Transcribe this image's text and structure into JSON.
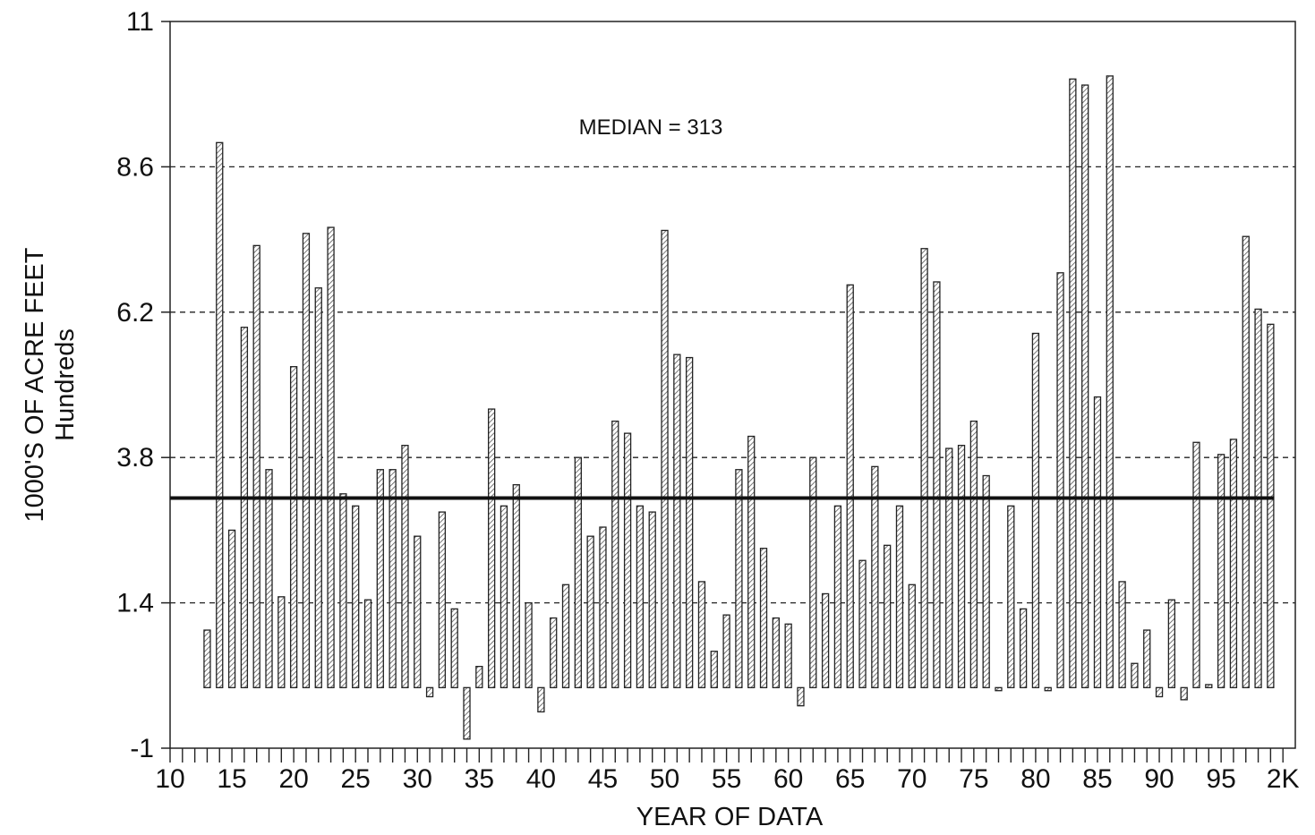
{
  "chart_data": {
    "type": "bar",
    "ylabel_line1": "1000'S OF ACRE FEET",
    "ylabel_line2": "Hundreds",
    "xlabel": "YEAR OF DATA",
    "annotation": "MEDIAN = 313",
    "median": 3.13,
    "baseline": 0,
    "ylim": [
      -1,
      11
    ],
    "yticks": [
      -1,
      1.4,
      3.8,
      6.2,
      8.6,
      11
    ],
    "ytick_labels": [
      "-1",
      "1.4",
      "3.8",
      "6.2",
      "8.6",
      "11"
    ],
    "xlim": [
      1910,
      2001
    ],
    "xtick_labels": [
      "10",
      "15",
      "20",
      "25",
      "30",
      "35",
      "40",
      "45",
      "50",
      "55",
      "60",
      "65",
      "70",
      "75",
      "80",
      "85",
      "90",
      "95",
      "2K"
    ],
    "gridlines": "horizontal dashed",
    "years": [
      1913,
      1914,
      1915,
      1916,
      1917,
      1918,
      1919,
      1920,
      1921,
      1922,
      1923,
      1924,
      1925,
      1926,
      1927,
      1928,
      1929,
      1930,
      1931,
      1932,
      1933,
      1934,
      1935,
      1936,
      1937,
      1938,
      1939,
      1940,
      1941,
      1942,
      1943,
      1944,
      1945,
      1946,
      1947,
      1948,
      1949,
      1950,
      1951,
      1952,
      1953,
      1954,
      1955,
      1956,
      1957,
      1958,
      1959,
      1960,
      1961,
      1962,
      1963,
      1964,
      1965,
      1966,
      1967,
      1968,
      1969,
      1970,
      1971,
      1972,
      1973,
      1974,
      1975,
      1976,
      1977,
      1978,
      1979,
      1980,
      1981,
      1982,
      1983,
      1984,
      1985,
      1986,
      1987,
      1988,
      1989,
      1990,
      1991,
      1992,
      1993,
      1994,
      1995,
      1996,
      1997,
      1998,
      1999
    ],
    "values": [
      0.95,
      9.0,
      2.6,
      5.95,
      7.3,
      3.6,
      1.5,
      5.3,
      7.5,
      6.6,
      7.6,
      3.2,
      3.0,
      1.45,
      3.6,
      3.6,
      4.0,
      2.5,
      -0.15,
      2.9,
      1.3,
      -0.85,
      0.35,
      4.6,
      3.0,
      3.35,
      1.4,
      -0.4,
      1.15,
      1.7,
      3.8,
      2.5,
      2.65,
      4.4,
      4.2,
      3.0,
      2.9,
      7.55,
      5.5,
      5.45,
      1.75,
      0.6,
      1.2,
      3.6,
      4.15,
      2.3,
      1.15,
      1.05,
      -0.3,
      3.8,
      1.55,
      3.0,
      6.65,
      2.1,
      3.65,
      2.35,
      3.0,
      1.7,
      7.25,
      6.7,
      3.95,
      4.0,
      4.4,
      3.5,
      -0.05,
      3.0,
      1.3,
      5.85,
      -0.05,
      6.85,
      10.05,
      9.95,
      4.8,
      10.1,
      1.75,
      0.4,
      0.95,
      -0.15,
      1.45,
      -0.2,
      4.05,
      0.05,
      3.85,
      4.1,
      7.45,
      6.25,
      6.0
    ]
  }
}
